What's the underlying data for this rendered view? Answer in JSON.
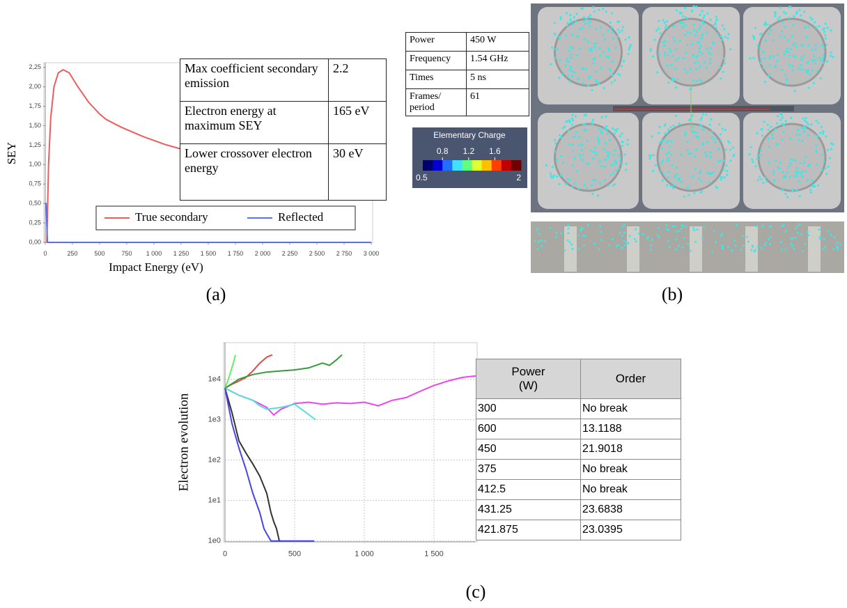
{
  "panel_labels": [
    "(a)",
    "(b)",
    "(c)"
  ],
  "chart_data": [
    {
      "type": "line",
      "ylabel": "SEY",
      "xlabel": "Impact Energy (eV)",
      "xlim": [
        0,
        3000
      ],
      "xticks": [
        0,
        250,
        500,
        750,
        {
          "value": 1000,
          "label": "1 000"
        },
        {
          "value": 1250,
          "label": "1 250"
        },
        {
          "value": 1500,
          "label": "1 500"
        },
        {
          "value": 1750,
          "label": "1 750"
        },
        {
          "value": 2000,
          "label": "2 000"
        },
        {
          "value": 2250,
          "label": "2 250"
        },
        {
          "value": 2500,
          "label": "2 500"
        },
        {
          "value": 2750,
          "label": "2 750"
        },
        {
          "value": 3000,
          "label": "3 000"
        }
      ],
      "ylim": [
        0,
        2.31
      ],
      "yticks": [
        {
          "value": 0,
          "label": "0,00"
        },
        {
          "value": 0.25,
          "label": "0,25"
        },
        {
          "value": 0.5,
          "label": "0,50"
        },
        {
          "value": 0.75,
          "label": "0,75"
        },
        {
          "value": 1,
          "label": "1,00"
        },
        {
          "value": 1.25,
          "label": "1,25"
        },
        {
          "value": 1.5,
          "label": "1,50"
        },
        {
          "value": 1.75,
          "label": "1,75"
        },
        {
          "value": 2,
          "label": "2,00"
        },
        {
          "value": 2.25,
          "label": "2,25"
        }
      ],
      "grid": false,
      "legend": "lower center",
      "series": [
        {
          "name": "True secondary",
          "color": "#f05a5a",
          "x": [
            15,
            30,
            50,
            80,
            120,
            165,
            220,
            300,
            400,
            500,
            560,
            700,
            900,
            1100,
            1250
          ],
          "values": [
            0,
            1.0,
            1.6,
            2.0,
            2.18,
            2.22,
            2.18,
            2.0,
            1.8,
            1.65,
            1.58,
            1.48,
            1.36,
            1.26,
            1.2
          ]
        },
        {
          "name": "Reflected",
          "color": "#5a6ef0",
          "x": [
            0,
            8,
            20,
            3000
          ],
          "values": [
            0.5,
            0.5,
            0,
            0
          ]
        }
      ]
    },
    {
      "type": "line",
      "ylabel": "Electron evolution",
      "yscale": "log",
      "xlim": [
        0,
        1800
      ],
      "xticks": [
        0,
        500,
        {
          "value": 1000,
          "label": "1 000"
        },
        {
          "value": 1500,
          "label": "1 500"
        }
      ],
      "ylim": [
        0.95,
        80000
      ],
      "yticks": [
        {
          "value": 1,
          "label": "1e0"
        },
        {
          "value": 10,
          "label": "1e1"
        },
        {
          "value": 100,
          "label": "1e2"
        },
        {
          "value": 1000,
          "label": "1e3"
        },
        {
          "value": 10000,
          "label": "1e4"
        }
      ],
      "grid": true,
      "series": [
        {
          "color": "#66ee66",
          "x": [
            0,
            20,
            40,
            60,
            75
          ],
          "values": [
            6000,
            9000,
            15000,
            25000,
            40000
          ]
        },
        {
          "color": "#ee4444",
          "x": [
            0,
            50,
            100,
            150,
            200,
            250,
            300,
            340
          ],
          "values": [
            6000,
            7500,
            9000,
            11000,
            16000,
            25000,
            35000,
            40000
          ]
        },
        {
          "color": "#3a9a3a",
          "x": [
            0,
            100,
            200,
            300,
            400,
            500,
            600,
            700,
            750,
            800,
            840
          ],
          "values": [
            6000,
            10000,
            13000,
            15000,
            16000,
            17000,
            19000,
            25000,
            22000,
            30000,
            40000
          ]
        },
        {
          "color": "#ee44ee",
          "x": [
            0,
            100,
            200,
            300,
            350,
            400,
            500,
            600,
            700,
            800,
            900,
            1000,
            1100,
            1200,
            1300,
            1400,
            1500,
            1600,
            1700,
            1800
          ],
          "values": [
            6000,
            4000,
            3000,
            2000,
            1300,
            1800,
            2500,
            2700,
            2400,
            2600,
            2500,
            2700,
            2200,
            3000,
            3500,
            5000,
            7000,
            9000,
            11000,
            12000
          ]
        },
        {
          "color": "#55dddd",
          "x": [
            0,
            100,
            200,
            250,
            300,
            400,
            500,
            550,
            650
          ],
          "values": [
            6000,
            4000,
            3000,
            2200,
            1800,
            2000,
            2400,
            1800,
            1000
          ]
        },
        {
          "color": "#333333",
          "x": [
            0,
            50,
            100,
            150,
            200,
            250,
            300,
            330,
            350,
            370,
            390,
            400
          ],
          "values": [
            6000,
            1500,
            300,
            150,
            80,
            40,
            15,
            5,
            3,
            2,
            1,
            1
          ]
        },
        {
          "color": "#4444ee",
          "x": [
            0,
            50,
            100,
            150,
            200,
            250,
            280,
            300,
            330,
            380,
            400,
            640
          ],
          "values": [
            6000,
            800,
            200,
            60,
            15,
            5,
            2,
            1.5,
            1,
            1,
            1,
            1
          ]
        }
      ]
    }
  ],
  "sey_table": {
    "rows": [
      [
        "Max coefficient secondary emission",
        "2.2"
      ],
      [
        "Electron energy at maximum SEY",
        "165 eV"
      ],
      [
        "Lower crossover electron energy",
        "30 eV"
      ]
    ]
  },
  "sim_table": {
    "rows": [
      [
        "Power",
        "450 W"
      ],
      [
        "Frequency",
        "1.54 GHz"
      ],
      [
        "Times",
        "5 ns"
      ],
      [
        "Frames/ period",
        "61"
      ]
    ]
  },
  "colorbar": {
    "title": "Elementary Charge",
    "range": [
      0.5,
      2
    ],
    "ticks": [
      0.8,
      1.2,
      1.6
    ]
  },
  "order_table": {
    "header": [
      "Power (W)",
      "Order"
    ],
    "rows": [
      [
        "300",
        "No break"
      ],
      [
        "600",
        "13.1188"
      ],
      [
        "450",
        "21.9018"
      ],
      [
        "375",
        "No break"
      ],
      [
        "412.5",
        "No break"
      ],
      [
        "431.25",
        "23.6838"
      ],
      [
        "421.875",
        "23.0395"
      ]
    ]
  }
}
